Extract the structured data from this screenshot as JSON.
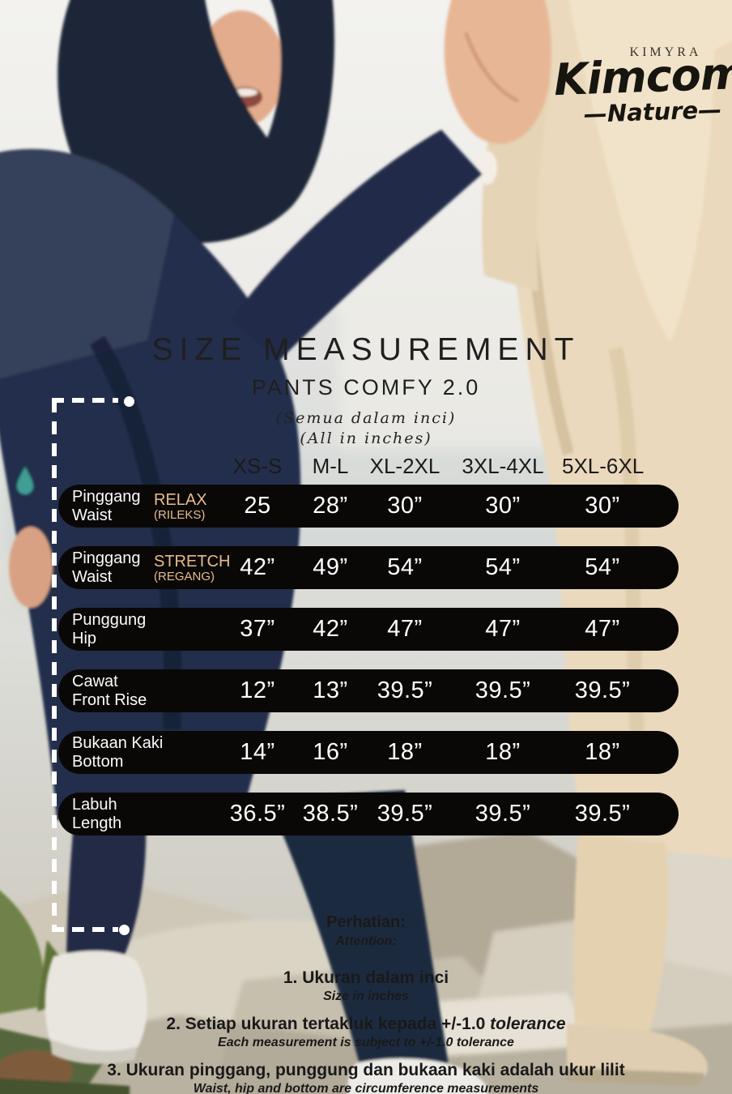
{
  "brand": {
    "name": "KIMYRA",
    "script": "Kimcomfy",
    "tagline": "—Nature—"
  },
  "title": {
    "main": "SIZE MEASUREMENT",
    "product": "PANTS COMFY 2.0",
    "note_my": "(Semua dalam inci)",
    "note_en": "(All in inches)"
  },
  "size_chart": {
    "columns": [
      "XS-S",
      "M-L",
      "XL-2XL",
      "3XL-4XL",
      "5XL-6XL"
    ],
    "rows": [
      {
        "label_my": "Pinggang",
        "label_en": "Waist",
        "variant": "RELAX",
        "variant_sub": "(RILEKS)",
        "values": [
          "25",
          "28”",
          "30”",
          "30”",
          "30”"
        ]
      },
      {
        "label_my": "Pinggang",
        "label_en": "Waist",
        "variant": "STRETCH",
        "variant_sub": "(REGANG)",
        "values": [
          "42”",
          "49”",
          "54”",
          "54”",
          "54”"
        ]
      },
      {
        "label_my": "Punggung",
        "label_en": "Hip",
        "variant": "",
        "variant_sub": "",
        "values": [
          "37”",
          "42”",
          "47”",
          "47”",
          "47”"
        ]
      },
      {
        "label_my": "Cawat",
        "label_en": "Front Rise",
        "variant": "",
        "variant_sub": "",
        "values": [
          "12”",
          "13”",
          "39.5”",
          "39.5”",
          "39.5”"
        ]
      },
      {
        "label_my": "Bukaan Kaki",
        "label_en": "Bottom",
        "variant": "",
        "variant_sub": "",
        "values": [
          "14”",
          "16”",
          "18”",
          "18”",
          "18”"
        ]
      },
      {
        "label_my": "Labuh",
        "label_en": "Length",
        "variant": "",
        "variant_sub": "",
        "values": [
          "36.5”",
          "38.5”",
          "39.5”",
          "39.5”",
          "39.5”"
        ]
      }
    ]
  },
  "notes": {
    "heading_my": "Perhatian:",
    "heading_en": "Attention:",
    "items": [
      {
        "my": "1. Ukuran dalam inci",
        "my_italic": "",
        "en": "Size in inches"
      },
      {
        "my": "2. Setiap ukuran tertakluk kepada +/-1.0",
        "my_italic": " tolerance",
        "en": "Each measurement is subject to +/-1.0 tolerance"
      },
      {
        "my": "3. Ukuran pinggang, punggung dan bukaan kaki adalah ukur lilit",
        "my_italic": "",
        "en": "Waist, hip and bottom are circumference measurements"
      }
    ]
  },
  "colors": {
    "pill_background": "#0a0807",
    "accent_variant_text": "#e7bb8c",
    "teal_drop": "#3f9e95",
    "measure_guide": "#ffffff"
  }
}
